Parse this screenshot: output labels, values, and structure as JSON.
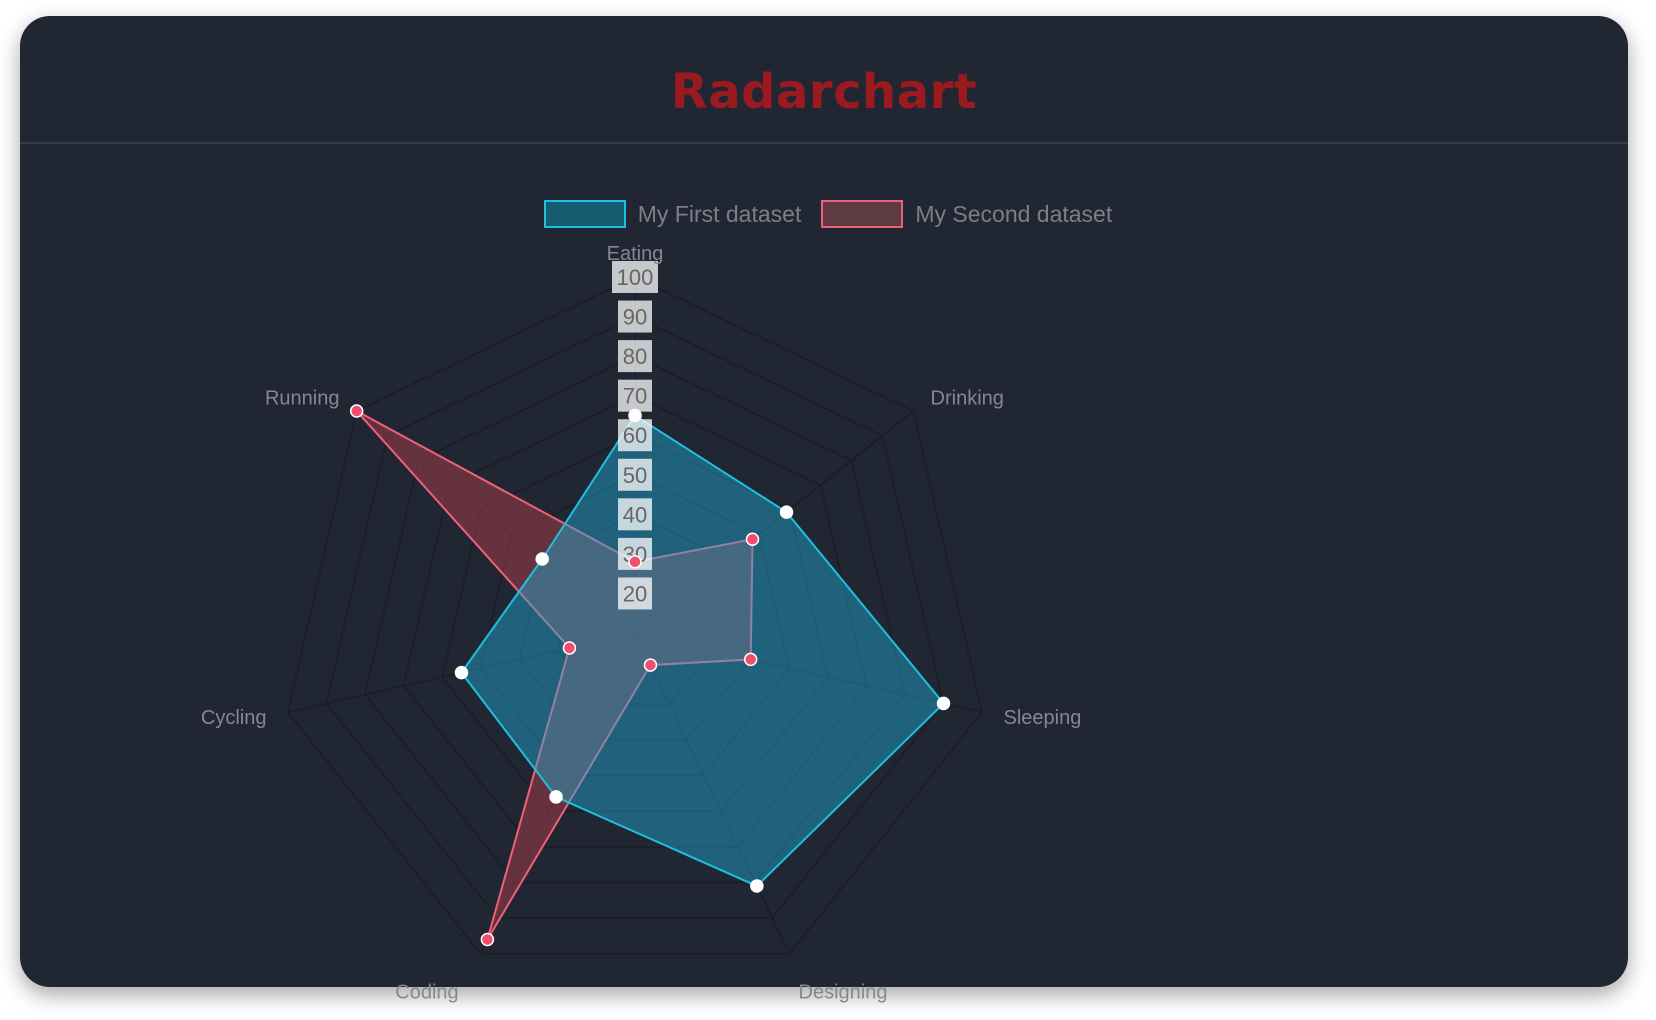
{
  "header": {
    "title": "Radarchart"
  },
  "chart_data": {
    "type": "radar",
    "categories": [
      "Eating",
      "Drinking",
      "Sleeping",
      "Designing",
      "Coding",
      "Cycling",
      "Running"
    ],
    "series": [
      {
        "name": "My First dataset",
        "values": [
          65,
          59,
          90,
          81,
          56,
          55,
          40
        ],
        "stroke": "#1ec0e0",
        "fill": "rgba(30,170,210,0.45)",
        "point": "#ffffff"
      },
      {
        "name": "My Second dataset",
        "values": [
          28,
          48,
          40,
          19,
          96,
          27,
          100
        ],
        "stroke": "#f0607a",
        "fill": "rgba(160,60,72,0.55)",
        "point": "#f0506e"
      }
    ],
    "r_ticks": [
      "20",
      "30",
      "40",
      "50",
      "60",
      "70",
      "80",
      "90",
      "100"
    ],
    "rlim": [
      10,
      100
    ],
    "grid": true,
    "legend": "top"
  }
}
